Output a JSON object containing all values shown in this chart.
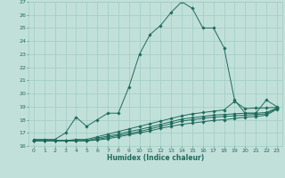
{
  "xlabel": "Humidex (Indice chaleur)",
  "bg_color": "#c2e0da",
  "grid_color": "#9eccc4",
  "line_color": "#1e6b5c",
  "xlim": [
    -0.5,
    23.5
  ],
  "ylim": [
    16,
    27
  ],
  "xticks": [
    0,
    1,
    2,
    3,
    4,
    5,
    6,
    7,
    8,
    9,
    10,
    11,
    12,
    13,
    14,
    15,
    16,
    17,
    18,
    19,
    20,
    21,
    22,
    23
  ],
  "yticks": [
    16,
    17,
    18,
    19,
    20,
    21,
    22,
    23,
    24,
    25,
    26,
    27
  ],
  "series": [
    {
      "x": [
        0,
        1,
        2,
        3,
        4,
        5,
        6,
        7,
        8,
        9,
        10,
        11,
        12,
        13,
        14,
        15,
        16,
        17,
        18,
        19,
        20,
        21,
        22,
        23
      ],
      "y": [
        16.5,
        16.5,
        16.5,
        17.0,
        18.2,
        17.5,
        18.0,
        18.5,
        18.5,
        20.5,
        23.0,
        24.5,
        25.2,
        26.2,
        27.0,
        26.5,
        25.0,
        25.0,
        23.5,
        19.5,
        18.5,
        18.5,
        19.5,
        19.0
      ]
    },
    {
      "x": [
        0,
        1,
        2,
        3,
        4,
        5,
        6,
        7,
        8,
        9,
        10,
        11,
        12,
        13,
        14,
        15,
        16,
        17,
        18,
        19,
        20,
        21,
        22,
        23
      ],
      "y": [
        16.4,
        16.4,
        16.4,
        16.4,
        16.5,
        16.5,
        16.7,
        16.9,
        17.1,
        17.3,
        17.5,
        17.7,
        17.9,
        18.1,
        18.3,
        18.45,
        18.55,
        18.65,
        18.75,
        19.4,
        18.85,
        18.9,
        18.9,
        18.95
      ]
    },
    {
      "x": [
        0,
        1,
        2,
        3,
        4,
        5,
        6,
        7,
        8,
        9,
        10,
        11,
        12,
        13,
        14,
        15,
        16,
        17,
        18,
        19,
        20,
        21,
        22,
        23
      ],
      "y": [
        16.4,
        16.4,
        16.4,
        16.4,
        16.4,
        16.4,
        16.6,
        16.75,
        16.9,
        17.1,
        17.25,
        17.45,
        17.65,
        17.85,
        18.05,
        18.15,
        18.25,
        18.35,
        18.4,
        18.45,
        18.5,
        18.5,
        18.55,
        18.9
      ]
    },
    {
      "x": [
        0,
        1,
        2,
        3,
        4,
        5,
        6,
        7,
        8,
        9,
        10,
        11,
        12,
        13,
        14,
        15,
        16,
        17,
        18,
        19,
        20,
        21,
        22,
        23
      ],
      "y": [
        16.4,
        16.4,
        16.4,
        16.4,
        16.4,
        16.4,
        16.5,
        16.65,
        16.8,
        16.95,
        17.1,
        17.3,
        17.5,
        17.7,
        17.9,
        18.0,
        18.1,
        18.2,
        18.25,
        18.3,
        18.35,
        18.4,
        18.45,
        18.85
      ]
    },
    {
      "x": [
        0,
        1,
        2,
        3,
        4,
        5,
        6,
        7,
        8,
        9,
        10,
        11,
        12,
        13,
        14,
        15,
        16,
        17,
        18,
        19,
        20,
        21,
        22,
        23
      ],
      "y": [
        16.4,
        16.4,
        16.4,
        16.4,
        16.4,
        16.4,
        16.45,
        16.55,
        16.7,
        16.85,
        17.0,
        17.15,
        17.35,
        17.5,
        17.65,
        17.75,
        17.85,
        17.95,
        18.0,
        18.1,
        18.2,
        18.25,
        18.35,
        18.8
      ]
    }
  ]
}
